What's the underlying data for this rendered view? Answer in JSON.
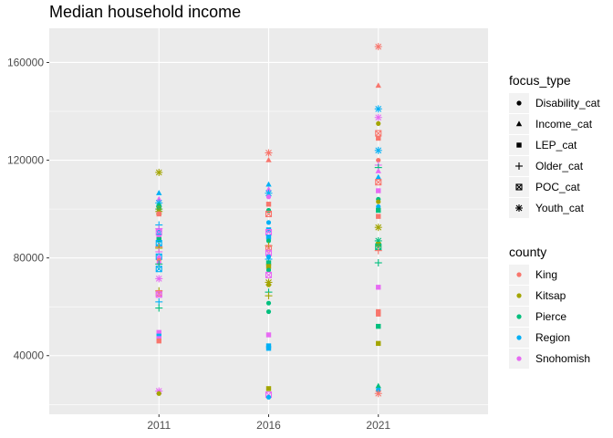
{
  "chart_data": {
    "type": "scatter",
    "title": "Median household income",
    "xlabel": "",
    "ylabel": "",
    "categories": [
      "2011",
      "2016",
      "2021"
    ],
    "ylim": [
      16000,
      174000
    ],
    "yticks": [
      40000,
      80000,
      120000,
      160000
    ],
    "ytick_labels": [
      "40000",
      "80000",
      "120000",
      "160000"
    ],
    "grid": true,
    "legend_position": "right",
    "legend_shape": {
      "title": "focus_type",
      "entries": [
        {
          "label": "Disability_cat",
          "shape": "circle"
        },
        {
          "label": "Income_cat",
          "shape": "triangle"
        },
        {
          "label": "LEP_cat",
          "shape": "square"
        },
        {
          "label": "Older_cat",
          "shape": "plus"
        },
        {
          "label": "POC_cat",
          "shape": "boxed-x"
        },
        {
          "label": "Youth_cat",
          "shape": "asterisk"
        }
      ]
    },
    "legend_color": {
      "title": "county",
      "entries": [
        {
          "label": "King",
          "color": "#F8766D"
        },
        {
          "label": "Kitsap",
          "color": "#A3A500"
        },
        {
          "label": "Pierce",
          "color": "#00BF7D"
        },
        {
          "label": "Region",
          "color": "#00B0F6"
        },
        {
          "label": "Snohomish",
          "color": "#E76BF3"
        }
      ]
    },
    "points": [
      {
        "year": "2011",
        "county": "Kitsap",
        "focus": "Youth_cat",
        "value": 115000
      },
      {
        "year": "2011",
        "county": "Region",
        "focus": "Income_cat",
        "value": 106500
      },
      {
        "year": "2011",
        "county": "Snohomish",
        "focus": "Income_cat",
        "value": 104000
      },
      {
        "year": "2011",
        "county": "Region",
        "focus": "Youth_cat",
        "value": 102500
      },
      {
        "year": "2011",
        "county": "Pierce",
        "focus": "Disability_cat",
        "value": 101500
      },
      {
        "year": "2011",
        "county": "Kitsap",
        "focus": "Disability_cat",
        "value": 100500
      },
      {
        "year": "2011",
        "county": "Pierce",
        "focus": "Youth_cat",
        "value": 100000
      },
      {
        "year": "2011",
        "county": "Kitsap",
        "focus": "Youth_cat",
        "value": 99000
      },
      {
        "year": "2011",
        "county": "King",
        "focus": "LEP_cat",
        "value": 98000
      },
      {
        "year": "2011",
        "county": "Region",
        "focus": "Older_cat",
        "value": 93500
      },
      {
        "year": "2011",
        "county": "Snohomish",
        "focus": "Older_cat",
        "value": 92000
      },
      {
        "year": "2011",
        "county": "Region",
        "focus": "Disability_cat",
        "value": 91000
      },
      {
        "year": "2011",
        "county": "Snohomish",
        "focus": "POC_cat",
        "value": 90500
      },
      {
        "year": "2011",
        "county": "Region",
        "focus": "LEP_cat",
        "value": 89000
      },
      {
        "year": "2011",
        "county": "Snohomish",
        "focus": "LEP_cat",
        "value": 88500
      },
      {
        "year": "2011",
        "county": "Pierce",
        "focus": "LEP_cat",
        "value": 87500
      },
      {
        "year": "2011",
        "county": "Region",
        "focus": "POC_cat",
        "value": 86000
      },
      {
        "year": "2011",
        "county": "King",
        "focus": "Older_cat",
        "value": 84500
      },
      {
        "year": "2011",
        "county": "Kitsap",
        "focus": "Older_cat",
        "value": 84000
      },
      {
        "year": "2011",
        "county": "Snohomish",
        "focus": "Older_cat",
        "value": 82500
      },
      {
        "year": "2011",
        "county": "Region",
        "focus": "POC_cat",
        "value": 80500
      },
      {
        "year": "2011",
        "county": "Snohomish",
        "focus": "Disability_cat",
        "value": 80000
      },
      {
        "year": "2011",
        "county": "King",
        "focus": "Disability_cat",
        "value": 79000
      },
      {
        "year": "2011",
        "county": "Snohomish",
        "focus": "Disability_cat",
        "value": 78000
      },
      {
        "year": "2011",
        "county": "Pierce",
        "focus": "Older_cat",
        "value": 77500
      },
      {
        "year": "2011",
        "county": "Region",
        "focus": "POC_cat",
        "value": 75500
      },
      {
        "year": "2011",
        "county": "Snohomish",
        "focus": "Youth_cat",
        "value": 71500
      },
      {
        "year": "2011",
        "county": "Kitsap",
        "focus": "Older_cat",
        "value": 66500
      },
      {
        "year": "2011",
        "county": "King",
        "focus": "POC_cat",
        "value": 65500
      },
      {
        "year": "2011",
        "county": "Snohomish",
        "focus": "POC_cat",
        "value": 65000
      },
      {
        "year": "2011",
        "county": "Region",
        "focus": "Older_cat",
        "value": 62000
      },
      {
        "year": "2011",
        "county": "Pierce",
        "focus": "Older_cat",
        "value": 59500
      },
      {
        "year": "2011",
        "county": "Snohomish",
        "focus": "LEP_cat",
        "value": 49500
      },
      {
        "year": "2011",
        "county": "Region",
        "focus": "LEP_cat",
        "value": 48000
      },
      {
        "year": "2011",
        "county": "Snohomish",
        "focus": "LEP_cat",
        "value": 47000
      },
      {
        "year": "2011",
        "county": "King",
        "focus": "LEP_cat",
        "value": 46000
      },
      {
        "year": "2011",
        "county": "Snohomish",
        "focus": "Youth_cat",
        "value": 25500
      },
      {
        "year": "2011",
        "county": "Kitsap",
        "focus": "Disability_cat",
        "value": 24500
      },
      {
        "year": "2016",
        "county": "King",
        "focus": "Youth_cat",
        "value": 123000
      },
      {
        "year": "2016",
        "county": "King",
        "focus": "Income_cat",
        "value": 120000
      },
      {
        "year": "2016",
        "county": "Region",
        "focus": "Income_cat",
        "value": 110000
      },
      {
        "year": "2016",
        "county": "Snohomish",
        "focus": "Income_cat",
        "value": 108000
      },
      {
        "year": "2016",
        "county": "Region",
        "focus": "Youth_cat",
        "value": 106500
      },
      {
        "year": "2016",
        "county": "Snohomish",
        "focus": "Disability_cat",
        "value": 105000
      },
      {
        "year": "2016",
        "county": "King",
        "focus": "LEP_cat",
        "value": 102000
      },
      {
        "year": "2016",
        "county": "Pierce",
        "focus": "Disability_cat",
        "value": 99500
      },
      {
        "year": "2016",
        "county": "King",
        "focus": "POC_cat",
        "value": 98000
      },
      {
        "year": "2016",
        "county": "Region",
        "focus": "Disability_cat",
        "value": 94500
      },
      {
        "year": "2016",
        "county": "Region",
        "focus": "LEP_cat",
        "value": 91500
      },
      {
        "year": "2016",
        "county": "Snohomish",
        "focus": "POC_cat",
        "value": 90500
      },
      {
        "year": "2016",
        "county": "Region",
        "focus": "LEP_cat",
        "value": 88500
      },
      {
        "year": "2016",
        "county": "Pierce",
        "focus": "Disability_cat",
        "value": 87000
      },
      {
        "year": "2016",
        "county": "Kitsap",
        "focus": "Older_cat",
        "value": 85000
      },
      {
        "year": "2016",
        "county": "King",
        "focus": "POC_cat",
        "value": 84000
      },
      {
        "year": "2016",
        "county": "Snohomish",
        "focus": "POC_cat",
        "value": 82000
      },
      {
        "year": "2016",
        "county": "Region",
        "focus": "Disability_cat",
        "value": 80500
      },
      {
        "year": "2016",
        "county": "Region",
        "focus": "Older_cat",
        "value": 79500
      },
      {
        "year": "2016",
        "county": "Pierce",
        "focus": "LEP_cat",
        "value": 78000
      },
      {
        "year": "2016",
        "county": "Kitsap",
        "focus": "LEP_cat",
        "value": 76500
      },
      {
        "year": "2016",
        "county": "Pierce",
        "focus": "Disability_cat",
        "value": 75000
      },
      {
        "year": "2016",
        "county": "Snohomish",
        "focus": "POC_cat",
        "value": 73000
      },
      {
        "year": "2016",
        "county": "Kitsap",
        "focus": "Youth_cat",
        "value": 70000
      },
      {
        "year": "2016",
        "county": "Kitsap",
        "focus": "Disability_cat",
        "value": 69000
      },
      {
        "year": "2016",
        "county": "Pierce",
        "focus": "Older_cat",
        "value": 66000
      },
      {
        "year": "2016",
        "county": "Kitsap",
        "focus": "Older_cat",
        "value": 64500
      },
      {
        "year": "2016",
        "county": "Pierce",
        "focus": "Disability_cat",
        "value": 61500
      },
      {
        "year": "2016",
        "county": "Pierce",
        "focus": "Disability_cat",
        "value": 58000
      },
      {
        "year": "2016",
        "county": "Snohomish",
        "focus": "LEP_cat",
        "value": 48500
      },
      {
        "year": "2016",
        "county": "Region",
        "focus": "LEP_cat",
        "value": 44000
      },
      {
        "year": "2016",
        "county": "Region",
        "focus": "LEP_cat",
        "value": 43000
      },
      {
        "year": "2016",
        "county": "Kitsap",
        "focus": "LEP_cat",
        "value": 26500
      },
      {
        "year": "2016",
        "county": "Snohomish",
        "focus": "POC_cat",
        "value": 24000
      },
      {
        "year": "2016",
        "county": "Region",
        "focus": "Disability_cat",
        "value": 23000
      },
      {
        "year": "2021",
        "county": "King",
        "focus": "Youth_cat",
        "value": 166500
      },
      {
        "year": "2021",
        "county": "King",
        "focus": "Income_cat",
        "value": 150500
      },
      {
        "year": "2021",
        "county": "Region",
        "focus": "Youth_cat",
        "value": 141000
      },
      {
        "year": "2021",
        "county": "Snohomish",
        "focus": "Youth_cat",
        "value": 137500
      },
      {
        "year": "2021",
        "county": "Kitsap",
        "focus": "Disability_cat",
        "value": 135000
      },
      {
        "year": "2021",
        "county": "King",
        "focus": "POC_cat",
        "value": 131000
      },
      {
        "year": "2021",
        "county": "King",
        "focus": "LEP_cat",
        "value": 129000
      },
      {
        "year": "2021",
        "county": "Region",
        "focus": "Youth_cat",
        "value": 124000
      },
      {
        "year": "2021",
        "county": "King",
        "focus": "Disability_cat",
        "value": 120000
      },
      {
        "year": "2021",
        "county": "Snohomish",
        "focus": "Older_cat",
        "value": 118000
      },
      {
        "year": "2021",
        "county": "Pierce",
        "focus": "Older_cat",
        "value": 117000
      },
      {
        "year": "2021",
        "county": "Snohomish",
        "focus": "Income_cat",
        "value": 115500
      },
      {
        "year": "2021",
        "county": "Region",
        "focus": "Income_cat",
        "value": 113000
      },
      {
        "year": "2021",
        "county": "King",
        "focus": "POC_cat",
        "value": 111000
      },
      {
        "year": "2021",
        "county": "Snohomish",
        "focus": "LEP_cat",
        "value": 107500
      },
      {
        "year": "2021",
        "county": "Pierce",
        "focus": "Disability_cat",
        "value": 104000
      },
      {
        "year": "2021",
        "county": "Kitsap",
        "focus": "Disability_cat",
        "value": 103000
      },
      {
        "year": "2021",
        "county": "Region",
        "focus": "Disability_cat",
        "value": 101000
      },
      {
        "year": "2021",
        "county": "Pierce",
        "focus": "LEP_cat",
        "value": 99500
      },
      {
        "year": "2021",
        "county": "King",
        "focus": "LEP_cat",
        "value": 97000
      },
      {
        "year": "2021",
        "county": "Kitsap",
        "focus": "Youth_cat",
        "value": 92500
      },
      {
        "year": "2021",
        "county": "Pierce",
        "focus": "Youth_cat",
        "value": 87000
      },
      {
        "year": "2021",
        "county": "Kitsap",
        "focus": "LEP_cat",
        "value": 85500
      },
      {
        "year": "2021",
        "county": "Pierce",
        "focus": "POC_cat",
        "value": 84500
      },
      {
        "year": "2021",
        "county": "King",
        "focus": "Older_cat",
        "value": 83000
      },
      {
        "year": "2021",
        "county": "Pierce",
        "focus": "Older_cat",
        "value": 78000
      },
      {
        "year": "2021",
        "county": "Snohomish",
        "focus": "LEP_cat",
        "value": 68000
      },
      {
        "year": "2021",
        "county": "King",
        "focus": "LEP_cat",
        "value": 58000
      },
      {
        "year": "2021",
        "county": "King",
        "focus": "LEP_cat",
        "value": 57000
      },
      {
        "year": "2021",
        "county": "Pierce",
        "focus": "LEP_cat",
        "value": 52000
      },
      {
        "year": "2021",
        "county": "Kitsap",
        "focus": "LEP_cat",
        "value": 45000
      },
      {
        "year": "2021",
        "county": "Pierce",
        "focus": "Income_cat",
        "value": 27500
      },
      {
        "year": "2021",
        "county": "Region",
        "focus": "Disability_cat",
        "value": 26000
      },
      {
        "year": "2021",
        "county": "King",
        "focus": "Youth_cat",
        "value": 24500
      }
    ]
  }
}
